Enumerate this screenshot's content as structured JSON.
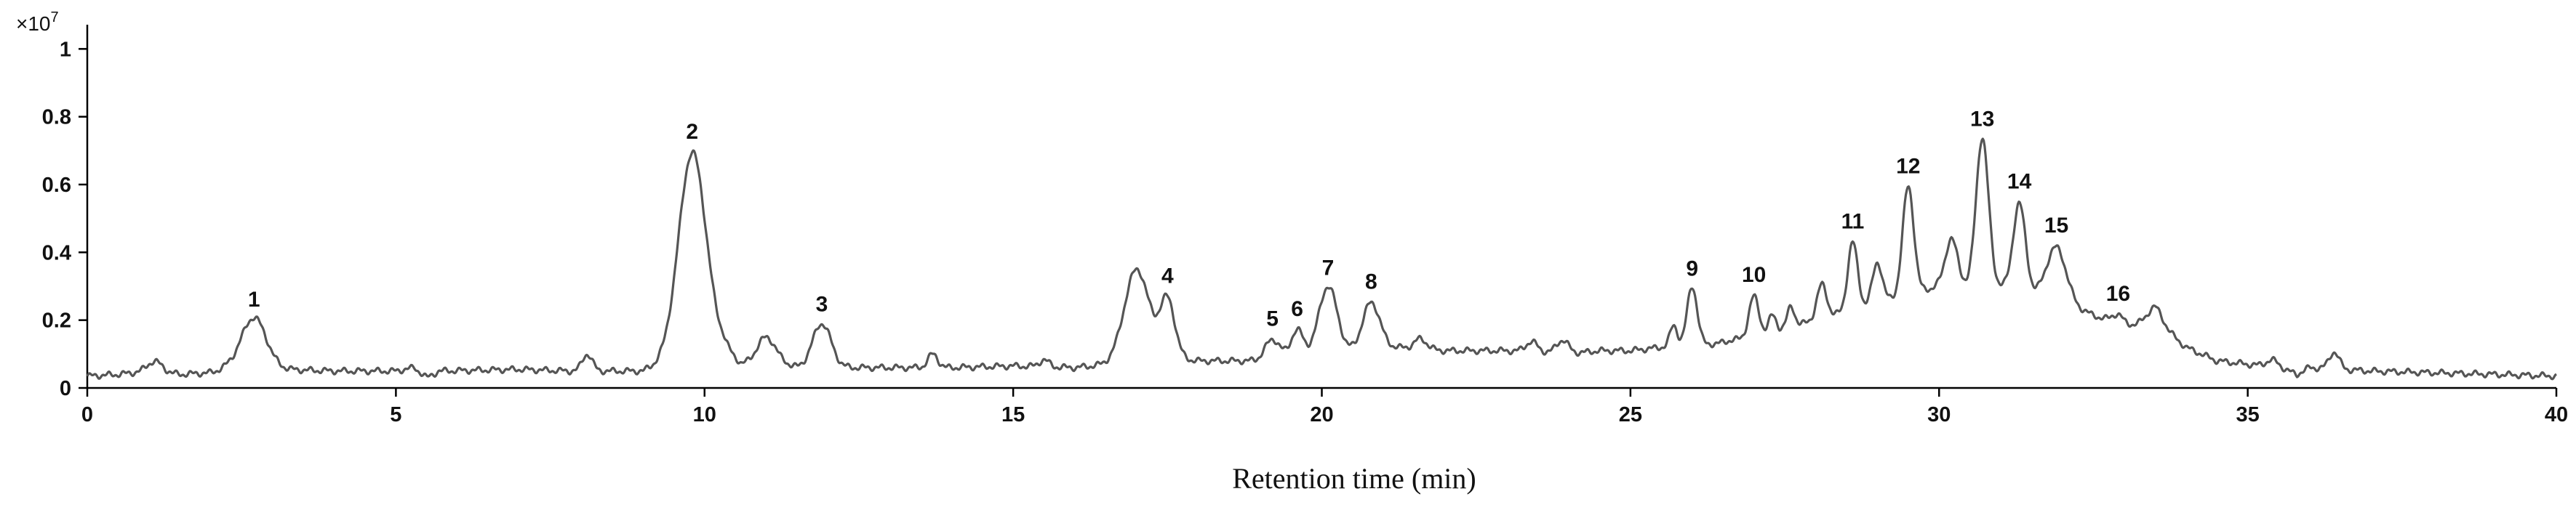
{
  "chart_data": {
    "type": "line",
    "title": "",
    "xlabel": "Retention time (min)",
    "ylabel": "",
    "y_multiplier_label": "×10",
    "y_multiplier_exponent": "7",
    "xlim": [
      0,
      40
    ],
    "ylim": [
      0,
      1.05
    ],
    "x_ticks": [
      0,
      5,
      10,
      15,
      20,
      25,
      30,
      35,
      40
    ],
    "x_tick_labels": [
      "0",
      "5",
      "10",
      "15",
      "20",
      "25",
      "30",
      "35",
      "40"
    ],
    "y_ticks": [
      0,
      0.2,
      0.4,
      0.6,
      0.8,
      1.0
    ],
    "y_tick_labels": [
      "0",
      "0.2",
      "0.4",
      "0.6",
      "0.8",
      "1"
    ],
    "grid": false,
    "line_color": "#555555",
    "baseline": [
      [
        0.0,
        0.035
      ],
      [
        0.5,
        0.04
      ],
      [
        1.0,
        0.05
      ],
      [
        1.5,
        0.04
      ],
      [
        2.0,
        0.045
      ],
      [
        2.3,
        0.06
      ],
      [
        4.0,
        0.05
      ],
      [
        5.0,
        0.05
      ],
      [
        5.3,
        0.06
      ],
      [
        5.5,
        0.03
      ],
      [
        5.7,
        0.05
      ],
      [
        7.0,
        0.055
      ],
      [
        7.8,
        0.05
      ],
      [
        8.3,
        0.05
      ],
      [
        9.0,
        0.05
      ],
      [
        9.3,
        0.07
      ],
      [
        10.3,
        0.12
      ],
      [
        10.6,
        0.07
      ],
      [
        11.3,
        0.07
      ],
      [
        11.5,
        0.06
      ],
      [
        12.3,
        0.06
      ],
      [
        13.0,
        0.06
      ],
      [
        13.5,
        0.06
      ],
      [
        14.0,
        0.06
      ],
      [
        15.0,
        0.065
      ],
      [
        16.0,
        0.06
      ],
      [
        16.6,
        0.07
      ],
      [
        17.4,
        0.09
      ],
      [
        18.0,
        0.08
      ],
      [
        18.5,
        0.08
      ],
      [
        19.0,
        0.08
      ],
      [
        21.2,
        0.12
      ],
      [
        22.0,
        0.11
      ],
      [
        23.0,
        0.11
      ],
      [
        24.0,
        0.1
      ],
      [
        24.5,
        0.11
      ],
      [
        25.0,
        0.11
      ],
      [
        25.5,
        0.12
      ],
      [
        26.0,
        0.13
      ],
      [
        26.4,
        0.13
      ],
      [
        26.6,
        0.14
      ],
      [
        27.0,
        0.15
      ],
      [
        28.0,
        0.2
      ],
      [
        29.0,
        0.25
      ],
      [
        30.0,
        0.3
      ],
      [
        31.0,
        0.3
      ],
      [
        32.0,
        0.25
      ],
      [
        33.0,
        0.18
      ],
      [
        33.5,
        0.2
      ],
      [
        34.0,
        0.12
      ],
      [
        34.5,
        0.08
      ],
      [
        35.0,
        0.07
      ],
      [
        35.5,
        0.06
      ],
      [
        35.8,
        0.04
      ],
      [
        36.0,
        0.06
      ],
      [
        37.0,
        0.05
      ],
      [
        38.0,
        0.045
      ],
      [
        39.0,
        0.04
      ],
      [
        40.0,
        0.035
      ]
    ],
    "peaks": [
      {
        "x": 1.1,
        "height": 0.03,
        "width": 0.12
      },
      {
        "x": 2.7,
        "height": 0.15,
        "width": 0.2,
        "label": "1"
      },
      {
        "x": 8.1,
        "height": 0.05,
        "width": 0.08
      },
      {
        "x": 9.8,
        "height": 0.6,
        "width": 0.22,
        "label": "2"
      },
      {
        "x": 11.0,
        "height": 0.08,
        "width": 0.15
      },
      {
        "x": 11.9,
        "height": 0.13,
        "width": 0.15,
        "label": "3"
      },
      {
        "x": 13.7,
        "height": 0.04,
        "width": 0.08
      },
      {
        "x": 15.5,
        "height": 0.02,
        "width": 0.08
      },
      {
        "x": 17.0,
        "height": 0.27,
        "width": 0.2
      },
      {
        "x": 17.5,
        "height": 0.17,
        "width": 0.12,
        "label": "4"
      },
      {
        "x": 19.2,
        "height": 0.06,
        "width": 0.12,
        "label": "5"
      },
      {
        "x": 19.6,
        "height": 0.08,
        "width": 0.1,
        "label": "6"
      },
      {
        "x": 20.1,
        "height": 0.2,
        "width": 0.15,
        "label": "7"
      },
      {
        "x": 20.8,
        "height": 0.14,
        "width": 0.14,
        "label": "8"
      },
      {
        "x": 21.6,
        "height": 0.03,
        "width": 0.1
      },
      {
        "x": 23.4,
        "height": 0.03,
        "width": 0.1
      },
      {
        "x": 23.9,
        "height": 0.04,
        "width": 0.1
      },
      {
        "x": 25.7,
        "height": 0.06,
        "width": 0.06
      },
      {
        "x": 26.0,
        "height": 0.17,
        "width": 0.08,
        "label": "9"
      },
      {
        "x": 27.0,
        "height": 0.12,
        "width": 0.08,
        "label": "10"
      },
      {
        "x": 27.3,
        "height": 0.05,
        "width": 0.06
      },
      {
        "x": 27.6,
        "height": 0.06,
        "width": 0.06
      },
      {
        "x": 28.1,
        "height": 0.1,
        "width": 0.08
      },
      {
        "x": 28.6,
        "height": 0.2,
        "width": 0.08,
        "label": "11"
      },
      {
        "x": 29.0,
        "height": 0.12,
        "width": 0.08
      },
      {
        "x": 29.5,
        "height": 0.32,
        "width": 0.09,
        "label": "12"
      },
      {
        "x": 30.2,
        "height": 0.14,
        "width": 0.1
      },
      {
        "x": 30.7,
        "height": 0.44,
        "width": 0.1,
        "label": "13"
      },
      {
        "x": 31.3,
        "height": 0.26,
        "width": 0.1,
        "label": "14"
      },
      {
        "x": 31.9,
        "height": 0.16,
        "width": 0.16,
        "label": "15"
      },
      {
        "x": 32.9,
        "height": 0.03,
        "width": 0.1,
        "label": "16"
      },
      {
        "x": 33.5,
        "height": 0.04,
        "width": 0.12
      },
      {
        "x": 35.4,
        "height": 0.02,
        "width": 0.1
      },
      {
        "x": 36.4,
        "height": 0.05,
        "width": 0.08
      }
    ]
  }
}
